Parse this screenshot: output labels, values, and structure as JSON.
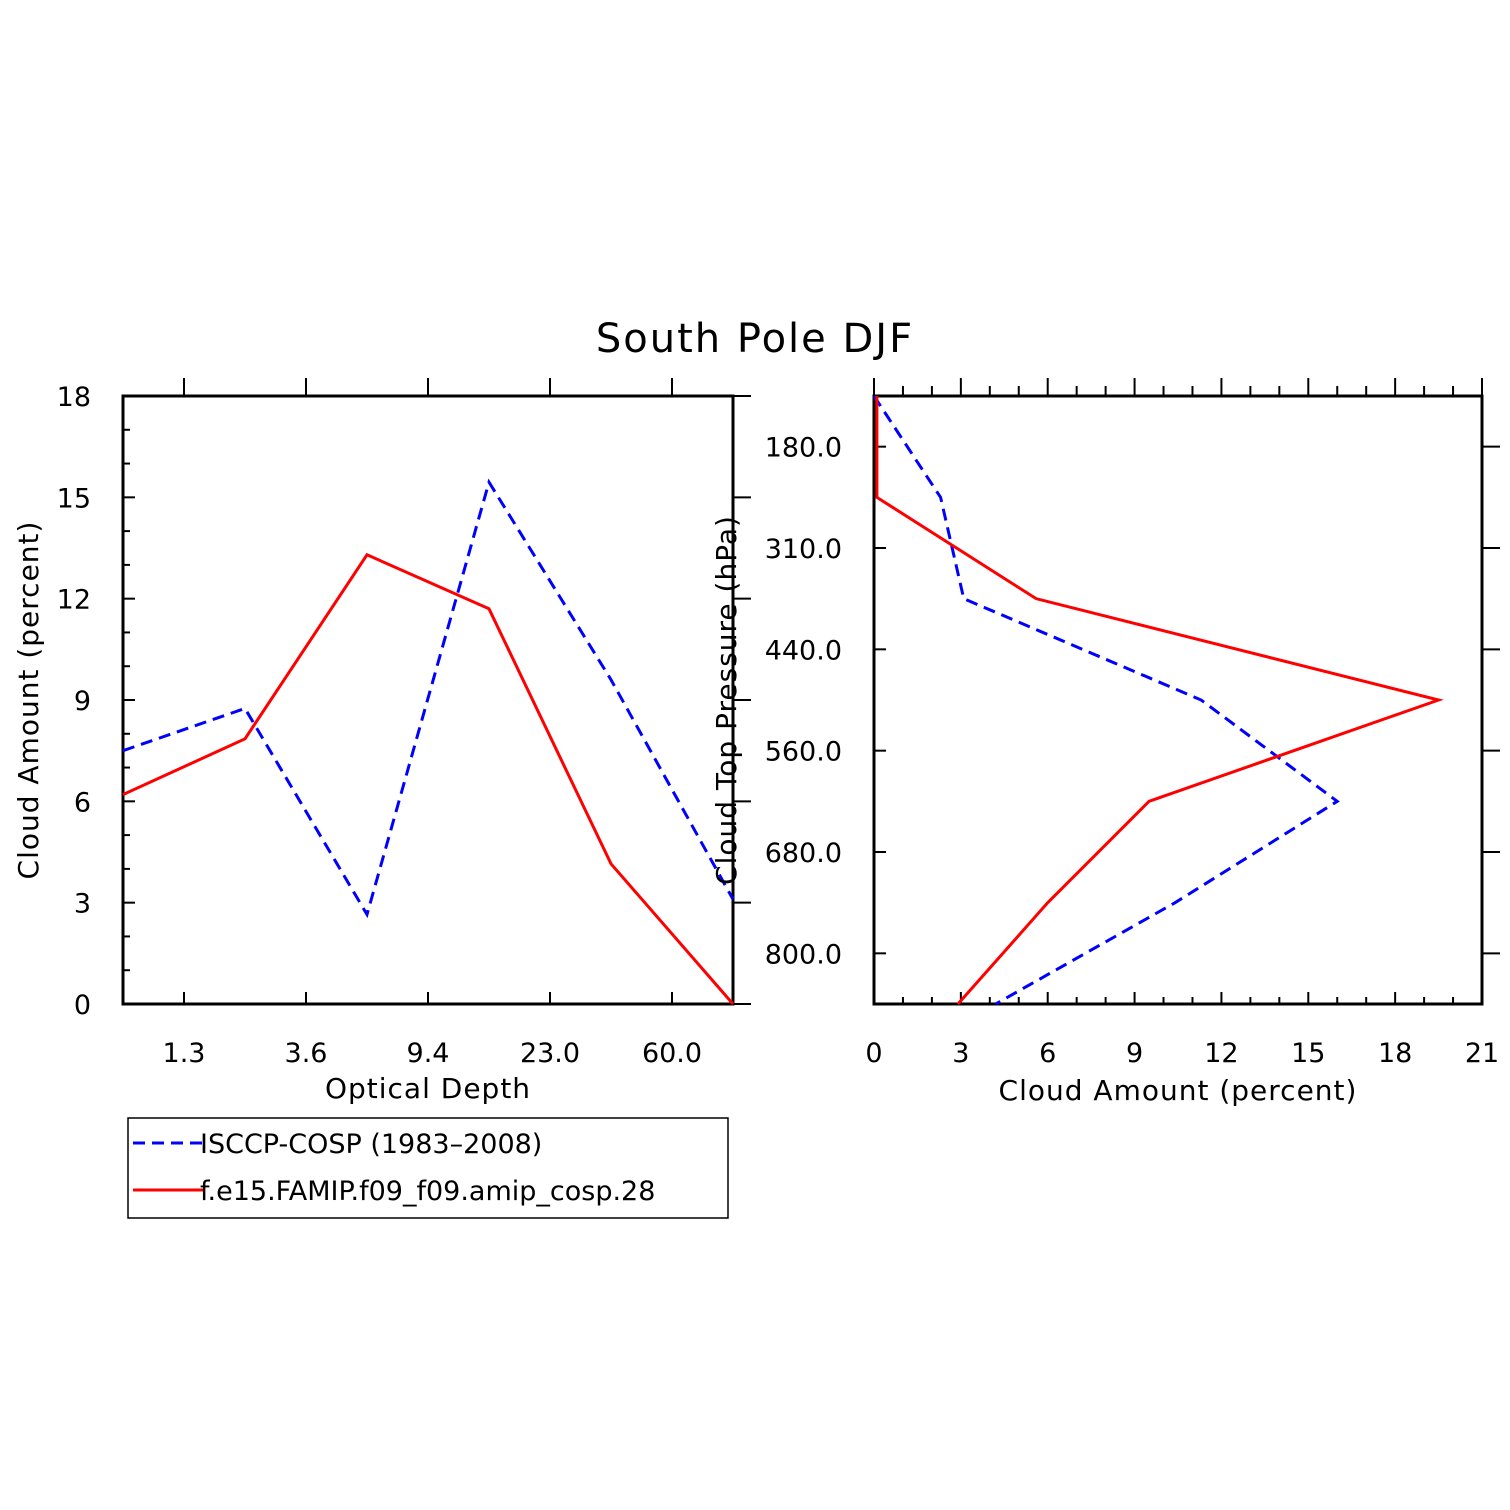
{
  "figure_title": "South Pole DJF",
  "chart_data": [
    {
      "type": "line",
      "id": "optical-depth",
      "xlabel": "Optical Depth",
      "ylabel": "Cloud Amount (percent)",
      "x_tick_labels": [
        "1.3",
        "3.6",
        "9.4",
        "23.0",
        "60.0"
      ],
      "y_tick_labels": [
        "0",
        "3",
        "6",
        "9",
        "12",
        "15",
        "18"
      ],
      "ylim": [
        0,
        18
      ],
      "x_bins": 6,
      "series": [
        {
          "name": "ISCCP-COSP (1983-2008)",
          "color": "#0000ff",
          "style": "dashed",
          "values": [
            7.5,
            8.75,
            2.65,
            15.45,
            9.6,
            3.1
          ]
        },
        {
          "name": "f.e15.FAMIP.f09_f09.amip_cosp.28",
          "color": "#ff0000",
          "style": "solid",
          "values": [
            6.2,
            7.85,
            13.3,
            11.7,
            4.15,
            0.0
          ]
        }
      ]
    },
    {
      "type": "line",
      "id": "cloud-top-pressure",
      "xlabel": "Cloud Amount (percent)",
      "ylabel": "Cloud Top Pressure (hPa)",
      "x_tick_labels": [
        "0",
        "3",
        "6",
        "9",
        "12",
        "15",
        "18",
        "21"
      ],
      "y_tick_labels": [
        "180.0",
        "310.0",
        "440.0",
        "560.0",
        "680.0",
        "800.0"
      ],
      "xlim": [
        0,
        21
      ],
      "y_levels": 7,
      "series": [
        {
          "name": "ISCCP-COSP (1983-2008)",
          "color": "#0000ff",
          "style": "dashed",
          "values": [
            0.0,
            2.3,
            3.1,
            11.3,
            16.0,
            10.4,
            4.2
          ]
        },
        {
          "name": "f.e15.FAMIP.f09_f09.amip_cosp.28",
          "color": "#ff0000",
          "style": "solid",
          "values": [
            0.1,
            0.1,
            5.6,
            19.5,
            9.5,
            6.0,
            2.9
          ]
        }
      ]
    }
  ],
  "legend": {
    "entries": [
      {
        "label": "ISCCP-COSP (1983–2008)",
        "color": "#0000ff",
        "style": "dashed"
      },
      {
        "label": "f.e15.FAMIP.f09_f09.amip_cosp.28",
        "color": "#ff0000",
        "style": "solid"
      }
    ]
  }
}
